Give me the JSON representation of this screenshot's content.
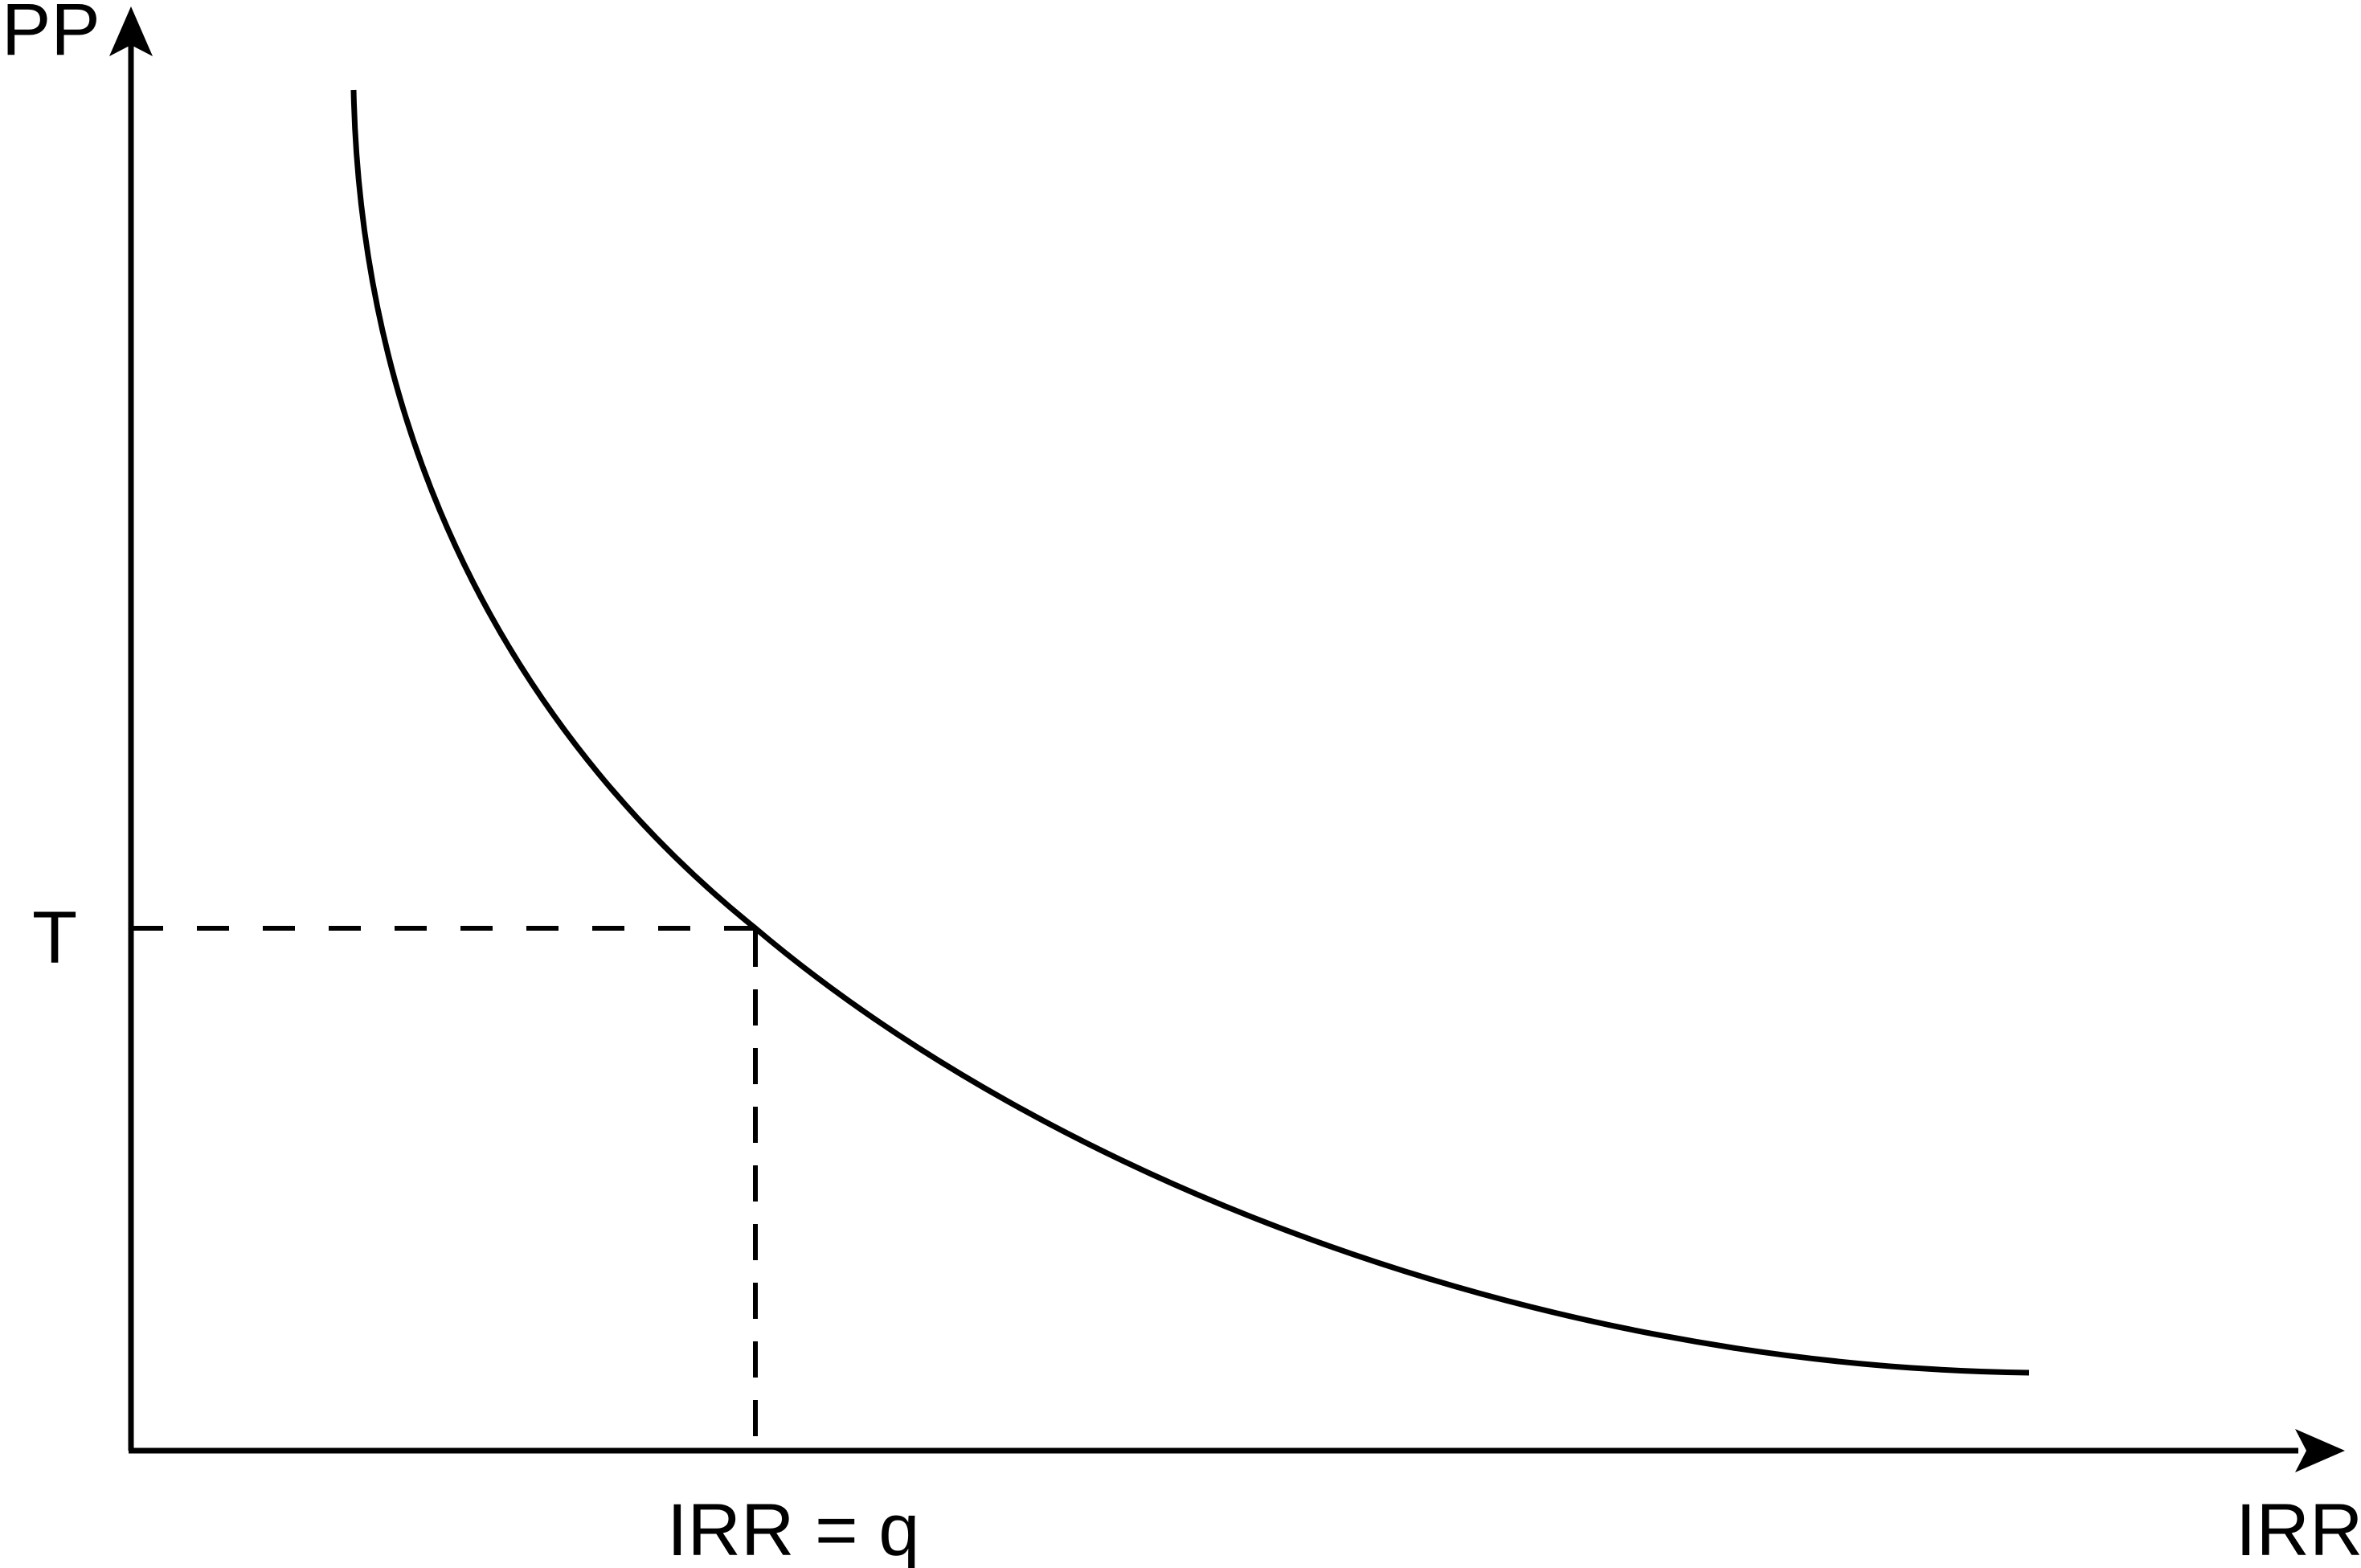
{
  "diagram": {
    "y_axis_label": "PP",
    "x_axis_label": "IRR",
    "threshold_label": "T",
    "intersection_label": "IRR = q",
    "curve_shape": "decreasing convex (PP falls as IRR rises)",
    "line_color": "#000000",
    "background": "#ffffff"
  }
}
